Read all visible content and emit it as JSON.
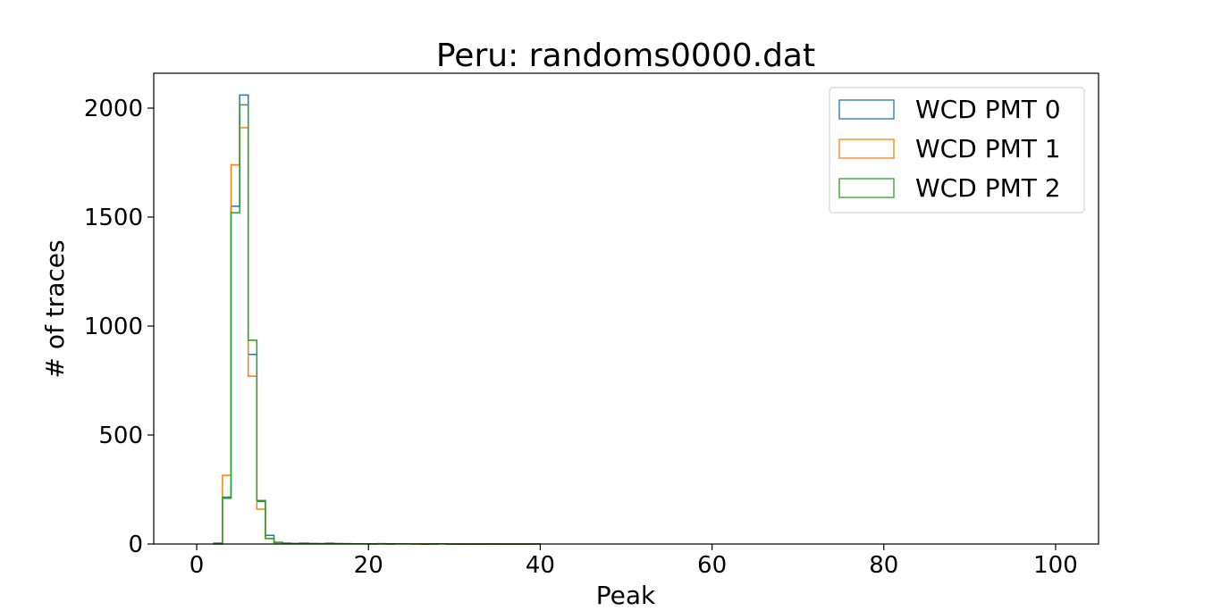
{
  "chart_data": {
    "type": "histogram-step",
    "title": "Peru: randoms0000.dat",
    "xlabel": "Peak",
    "ylabel": "# of traces",
    "xlim": [
      -5,
      105
    ],
    "ylim": [
      0,
      2160
    ],
    "xticks": [
      0,
      20,
      40,
      60,
      80,
      100
    ],
    "yticks": [
      0,
      500,
      1000,
      1500,
      2000
    ],
    "legend_position": "top-right",
    "bin_edges": [
      2,
      3,
      4,
      5,
      6,
      7,
      8,
      9,
      10,
      11,
      12,
      13,
      14,
      15,
      16,
      17,
      18,
      19,
      20,
      21,
      22,
      23,
      24,
      25,
      26,
      27,
      28,
      29,
      30,
      31,
      32,
      33,
      34,
      35,
      36,
      37,
      38,
      39,
      40
    ],
    "series": [
      {
        "name": "WCD PMT 0",
        "color": "#1f77b4",
        "values": [
          0,
          210,
          1550,
          2060,
          870,
          195,
          40,
          8,
          4,
          3,
          2,
          2,
          2,
          4,
          2,
          1,
          1,
          1,
          0,
          1,
          0,
          1,
          1,
          1,
          0,
          0,
          1,
          0,
          0,
          0,
          0,
          0,
          1,
          0,
          0,
          0,
          0,
          1
        ]
      },
      {
        "name": "WCD PMT 1",
        "color": "#ff7f0e",
        "values": [
          5,
          315,
          1740,
          1910,
          770,
          160,
          25,
          7,
          4,
          3,
          5,
          3,
          2,
          3,
          2,
          2,
          1,
          1,
          1,
          2,
          1,
          1,
          1,
          1,
          1,
          0,
          1,
          0,
          0,
          1,
          0,
          0,
          0,
          0,
          0,
          0,
          0,
          0
        ]
      },
      {
        "name": "WCD PMT 2",
        "color": "#2ca02c",
        "values": [
          2,
          215,
          1520,
          2015,
          935,
          200,
          25,
          6,
          3,
          2,
          2,
          2,
          1,
          2,
          1,
          1,
          1,
          1,
          1,
          1,
          1,
          1,
          1,
          0,
          0,
          1,
          1,
          0,
          0,
          0,
          0,
          0,
          0,
          0,
          0,
          0,
          0,
          0
        ]
      }
    ]
  }
}
